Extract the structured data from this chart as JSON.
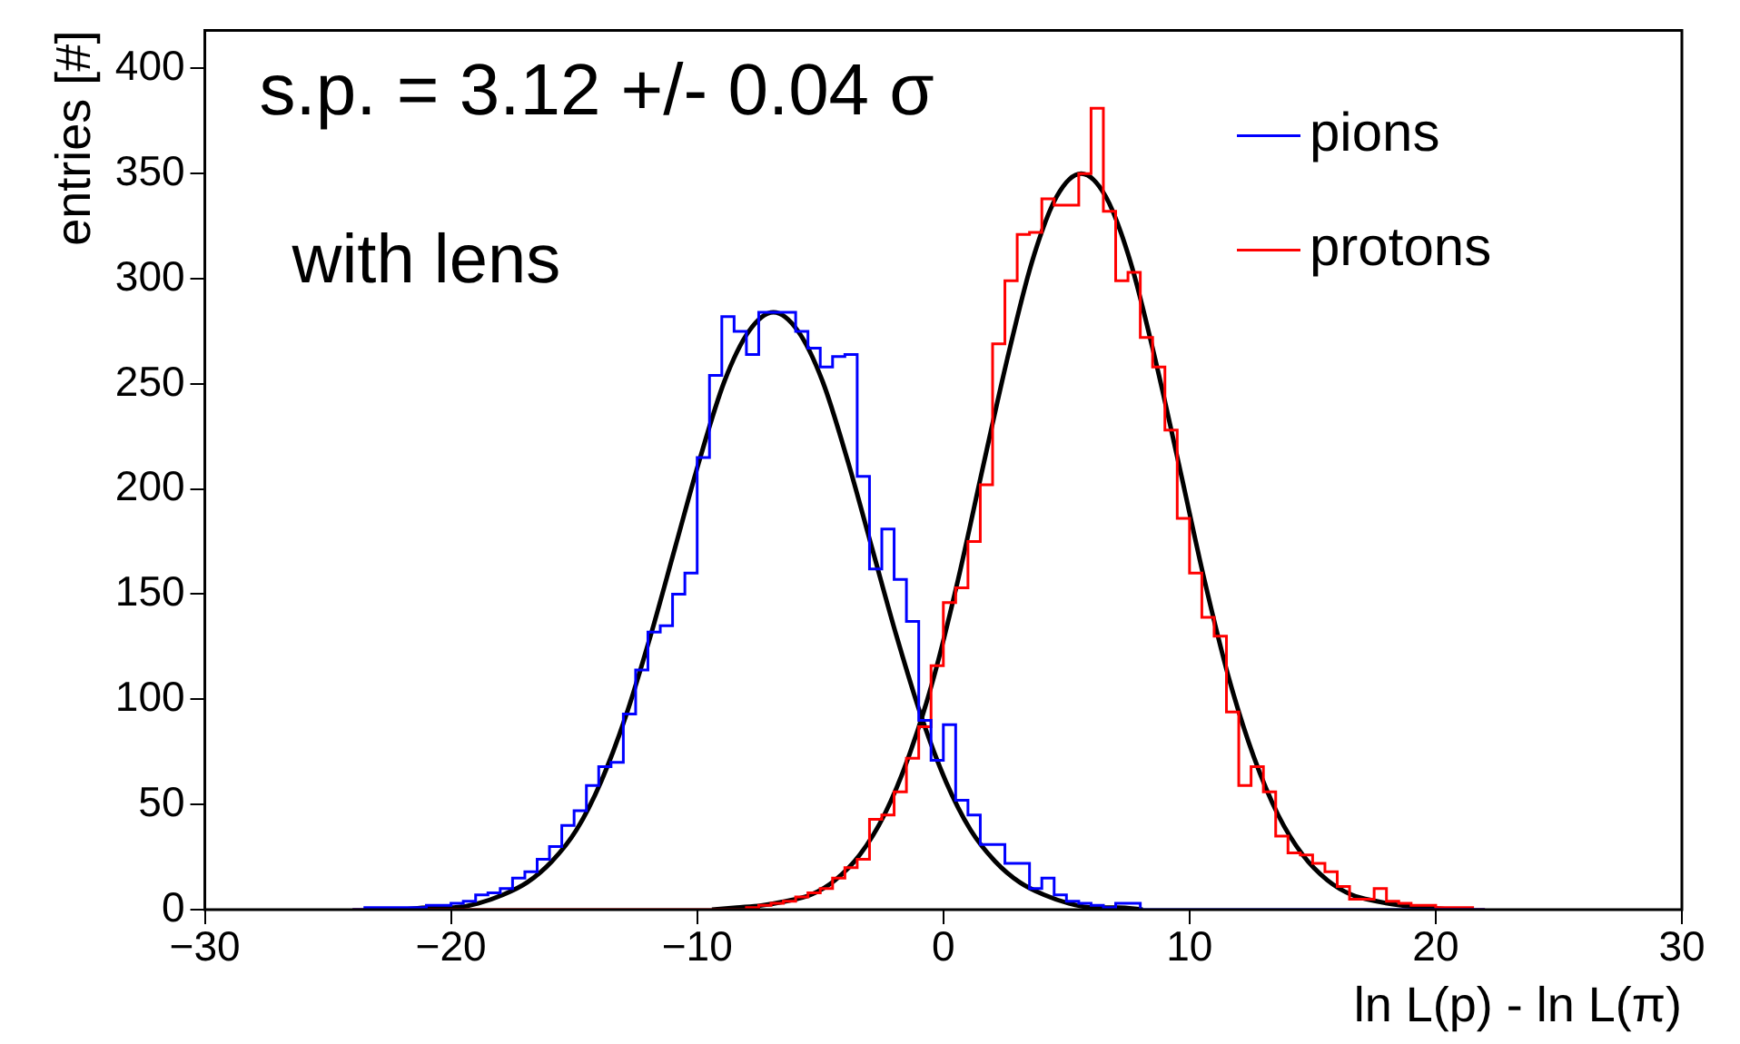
{
  "chart_data": {
    "type": "histogram",
    "xlabel": "ln L(p) - ln L(π)",
    "ylabel": "entries [#]",
    "annotations": [
      "s.p. = 3.12 +/- 0.04 σ",
      "with lens"
    ],
    "bins": [
      -24,
      -23.5,
      -23,
      -22.5,
      -22,
      -21.5,
      -21,
      -20.5,
      -20,
      -19.5,
      -19,
      -18.5,
      -18,
      -17.5,
      -17,
      -16.5,
      -16,
      -15.5,
      -15,
      -14.5,
      -14,
      -13.5,
      -13,
      -12.5,
      -12,
      -11.5,
      -11,
      -10.5,
      -10,
      -9.5,
      -9,
      -8.5,
      -8,
      -7.5,
      -7,
      -6.5,
      -6,
      -5.5,
      -5,
      -4.5,
      -4,
      -3.5,
      -3,
      -2.5,
      -2,
      -1.5,
      -1,
      -0.5,
      0,
      0.5,
      1,
      1.5,
      2,
      2.5,
      3,
      3.5,
      4,
      4.5,
      5,
      5.5,
      6,
      6.5,
      7,
      7.5,
      8,
      8.5,
      9,
      9.5,
      10,
      10.5,
      11,
      11.5,
      12,
      12.5,
      13,
      13.5,
      14,
      14.5,
      15,
      15.5,
      16,
      16.5,
      17,
      17.5,
      18,
      18.5,
      19,
      19.5,
      20,
      20.5,
      21,
      21.5,
      22
    ],
    "series": [
      {
        "name": "pions",
        "color": "#0000ff",
        "values": [
          0,
          1,
          1,
          1,
          1,
          1,
          2,
          2,
          3,
          4,
          7,
          8,
          10,
          15,
          18,
          24,
          30,
          40,
          47,
          59,
          68,
          70,
          93,
          114,
          132,
          135,
          150,
          160,
          215,
          254,
          282,
          275,
          264,
          284,
          284,
          284,
          275,
          267,
          258,
          263,
          264,
          206,
          162,
          181,
          157,
          137,
          90,
          71,
          88,
          52,
          45,
          31,
          31,
          22,
          22,
          10,
          15,
          7,
          4,
          3,
          2,
          1,
          3,
          3,
          0,
          0,
          0,
          0,
          0,
          0,
          0,
          0,
          0,
          0,
          0,
          0,
          0,
          0,
          0,
          0,
          0,
          0,
          0,
          0,
          0,
          0,
          0,
          0,
          0,
          0,
          0,
          0
        ]
      },
      {
        "name": "protons",
        "color": "#ff0000",
        "values": [
          0,
          0,
          0,
          0,
          0,
          0,
          0,
          0,
          0,
          0,
          0,
          0,
          0,
          0,
          0,
          0,
          0,
          0,
          0,
          0,
          0,
          0,
          0,
          0,
          0,
          0,
          0,
          0,
          0,
          0,
          0,
          0,
          1,
          2,
          3,
          4,
          6,
          8,
          10,
          15,
          20,
          24,
          43,
          45,
          56,
          72,
          87,
          116,
          146,
          153,
          175,
          202,
          269,
          299,
          321,
          322,
          338,
          335,
          335,
          350,
          381,
          332,
          299,
          303,
          272,
          258,
          228,
          186,
          160,
          139,
          130,
          94,
          59,
          68,
          56,
          35,
          27,
          26,
          22,
          18,
          11,
          5,
          5,
          10,
          4,
          3,
          2,
          2,
          1,
          1,
          1,
          0
        ]
      },
      {
        "type": "line",
        "color": "#000000",
        "x": [
          -21.9,
          -20.9,
          -19.9,
          -18.9,
          -17.9,
          -16.9,
          -15.9,
          -14.9,
          -13.9,
          -12.9,
          -11.9,
          -10.9,
          -9.9,
          -8.9,
          -7.9,
          -6.9,
          -5.9,
          -4.9,
          -3.9,
          -2.9,
          -1.9,
          -0.9,
          0.1,
          1.1,
          2.1,
          3.1,
          4.1,
          5.1,
          6.1,
          7.1,
          8.1
        ],
        "values": [
          0,
          1,
          1,
          3,
          7,
          13,
          23,
          38,
          61,
          92,
          130,
          172,
          214,
          251,
          275,
          284,
          275,
          251,
          214,
          172,
          130,
          92,
          61,
          38,
          23,
          13,
          7,
          3,
          1,
          1,
          0
        ]
      },
      {
        "type": "line",
        "color": "#000000",
        "x": [
          -9.4,
          -8.4,
          -7.4,
          -6.4,
          -5.4,
          -4.4,
          -3.4,
          -2.4,
          -1.4,
          -0.4,
          0.6,
          1.6,
          2.6,
          3.6,
          4.6,
          5.6,
          6.6,
          7.6,
          8.6,
          9.6,
          10.6,
          11.6,
          12.6,
          13.6,
          14.6,
          15.6,
          16.6,
          17.6,
          18.6,
          19.6,
          20.6
        ],
        "values": [
          0,
          1,
          2,
          4,
          7,
          14,
          26,
          45,
          73,
          110,
          157,
          210,
          262,
          308,
          339,
          350,
          339,
          308,
          262,
          210,
          157,
          110,
          73,
          45,
          26,
          14,
          7,
          4,
          2,
          1,
          0
        ]
      }
    ],
    "xlim": [
      -30,
      30
    ],
    "xticks": [
      -30,
      -20,
      -10,
      0,
      10,
      20,
      30
    ],
    "ylim": [
      0,
      418
    ],
    "yticks": [
      0,
      50,
      100,
      150,
      200,
      250,
      300,
      350,
      400
    ],
    "legend": "top right"
  }
}
